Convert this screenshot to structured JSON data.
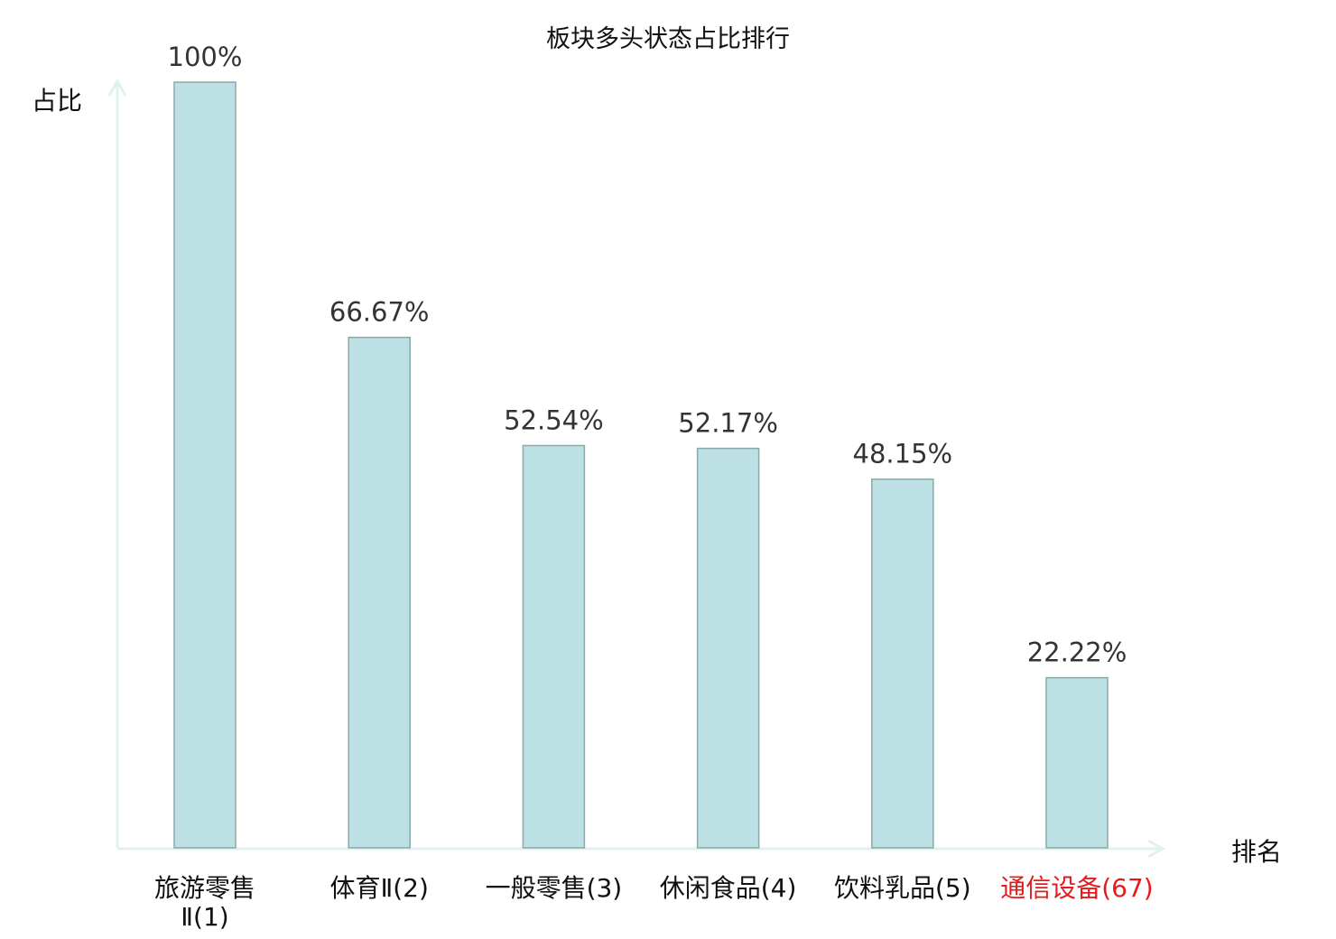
{
  "chart_data": {
    "type": "bar",
    "title": "板块多头状态占比排行",
    "ylabel": "占比",
    "xlabel": "排名",
    "ylim": [
      0,
      100
    ],
    "grid": false,
    "categories": [
      "旅游零售Ⅱ(1)",
      "体育Ⅱ(2)",
      "一般零售(3)",
      "休闲食品(4)",
      "饮料乳品(5)",
      "通信设备(67)"
    ],
    "category_lines": [
      [
        "旅游零售",
        "Ⅱ(1)"
      ],
      [
        "体育Ⅱ(2)"
      ],
      [
        "一般零售(3)"
      ],
      [
        "休闲食品(4)"
      ],
      [
        "饮料乳品(5)"
      ],
      [
        "通信设备(67)"
      ]
    ],
    "values": [
      100,
      66.67,
      52.54,
      52.17,
      48.15,
      22.22
    ],
    "data_labels": [
      "100%",
      "66.67%",
      "52.54%",
      "52.17%",
      "48.15%",
      "22.22%"
    ],
    "highlight_index": 5,
    "colors": {
      "bar_fill": "#bce0e3",
      "bar_stroke": "#8aa9aa",
      "axis": "#dff2ef",
      "label": "#333333",
      "highlight": "#e8191b"
    }
  }
}
